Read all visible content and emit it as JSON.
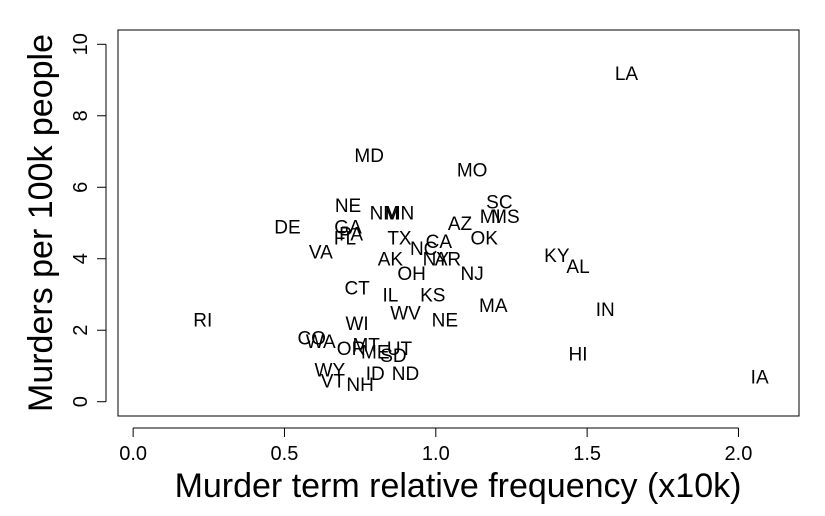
{
  "chart_data": {
    "type": "scatter",
    "title": "",
    "xlabel": "Murder term relative frequency (x10k)",
    "ylabel": "Murders per 100k people",
    "xlim": [
      -0.05,
      2.2
    ],
    "ylim": [
      -0.4,
      10.4
    ],
    "xticks": [
      "0.0",
      "0.5",
      "1.0",
      "1.5",
      "2.0"
    ],
    "yticks": [
      "0",
      "2",
      "4",
      "6",
      "8",
      "10"
    ],
    "grid": false,
    "legend": "none",
    "points": [
      {
        "label": "LA",
        "x": 1.63,
        "y": 9.2
      },
      {
        "label": "MD",
        "x": 0.78,
        "y": 6.9
      },
      {
        "label": "MO",
        "x": 1.12,
        "y": 6.5
      },
      {
        "label": "SC",
        "x": 1.21,
        "y": 5.6
      },
      {
        "label": "NE",
        "x": 0.71,
        "y": 5.5
      },
      {
        "label": "NM",
        "x": 0.83,
        "y": 5.3
      },
      {
        "label": "MN",
        "x": 0.88,
        "y": 5.3
      },
      {
        "label": "MI",
        "x": 1.18,
        "y": 5.2
      },
      {
        "label": "MS",
        "x": 1.23,
        "y": 5.2
      },
      {
        "label": "AZ",
        "x": 1.08,
        "y": 5.0
      },
      {
        "label": "DE",
        "x": 0.51,
        "y": 4.9
      },
      {
        "label": "GA",
        "x": 0.71,
        "y": 4.9
      },
      {
        "label": "PA",
        "x": 0.72,
        "y": 4.7
      },
      {
        "label": "FL",
        "x": 0.7,
        "y": 4.6
      },
      {
        "label": "OK",
        "x": 1.16,
        "y": 4.6
      },
      {
        "label": "TX",
        "x": 0.88,
        "y": 4.6
      },
      {
        "label": "CA",
        "x": 1.01,
        "y": 4.5
      },
      {
        "label": "NC",
        "x": 0.96,
        "y": 4.3
      },
      {
        "label": "VA",
        "x": 0.62,
        "y": 4.2
      },
      {
        "label": "KY",
        "x": 1.4,
        "y": 4.1
      },
      {
        "label": "AR",
        "x": 1.04,
        "y": 4.0
      },
      {
        "label": "NY",
        "x": 1.0,
        "y": 4.0
      },
      {
        "label": "AK",
        "x": 0.85,
        "y": 4.0
      },
      {
        "label": "AL",
        "x": 1.47,
        "y": 3.8
      },
      {
        "label": "NJ",
        "x": 1.12,
        "y": 3.6
      },
      {
        "label": "OH",
        "x": 0.92,
        "y": 3.6
      },
      {
        "label": "CT",
        "x": 0.74,
        "y": 3.2
      },
      {
        "label": "IL",
        "x": 0.85,
        "y": 3.0
      },
      {
        "label": "KS",
        "x": 0.99,
        "y": 3.0
      },
      {
        "label": "MA",
        "x": 1.19,
        "y": 2.7
      },
      {
        "label": "IN",
        "x": 1.56,
        "y": 2.6
      },
      {
        "label": "WV",
        "x": 0.9,
        "y": 2.5
      },
      {
        "label": "RI",
        "x": 0.23,
        "y": 2.3
      },
      {
        "label": "NE",
        "x": 1.03,
        "y": 2.3
      },
      {
        "label": "WI",
        "x": 0.74,
        "y": 2.2
      },
      {
        "label": "CO",
        "x": 0.59,
        "y": 1.8
      },
      {
        "label": "WA",
        "x": 0.62,
        "y": 1.7
      },
      {
        "label": "OR",
        "x": 0.72,
        "y": 1.5
      },
      {
        "label": "MT",
        "x": 0.77,
        "y": 1.6
      },
      {
        "label": "UT",
        "x": 0.88,
        "y": 1.5
      },
      {
        "label": "ME",
        "x": 0.8,
        "y": 1.4
      },
      {
        "label": "SD",
        "x": 0.86,
        "y": 1.3
      },
      {
        "label": "HI",
        "x": 1.47,
        "y": 1.35
      },
      {
        "label": "WY",
        "x": 0.65,
        "y": 0.9
      },
      {
        "label": "ID",
        "x": 0.8,
        "y": 0.8
      },
      {
        "label": "ND",
        "x": 0.9,
        "y": 0.8
      },
      {
        "label": "VT",
        "x": 0.66,
        "y": 0.6
      },
      {
        "label": "NH",
        "x": 0.75,
        "y": 0.5
      },
      {
        "label": "IA",
        "x": 2.07,
        "y": 0.7
      }
    ]
  }
}
